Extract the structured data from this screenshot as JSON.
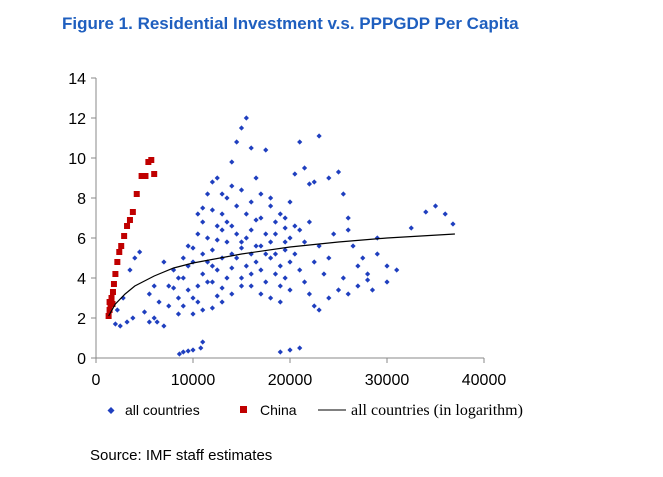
{
  "chart_data": {
    "type": "scatter",
    "title": "Figure 1. Residential Investment v.s. PPPGDP Per Capita",
    "source": "Source: IMF staff estimates",
    "xlim": [
      0,
      40000
    ],
    "ylim": [
      0,
      14
    ],
    "x_ticks": [
      "0",
      "10000",
      "20000",
      "30000",
      "40000"
    ],
    "y_ticks": [
      "0",
      "2",
      "4",
      "6",
      "8",
      "10",
      "12",
      "14"
    ],
    "grid": false,
    "legend_position": "bottom",
    "series": [
      {
        "name": "all countries",
        "color": "#1f3fbf",
        "marker": "diamond",
        "points": [
          [
            8600,
            0.2
          ],
          [
            9000,
            0.3
          ],
          [
            9500,
            0.35
          ],
          [
            10000,
            0.4
          ],
          [
            10800,
            0.5
          ],
          [
            11000,
            0.8
          ],
          [
            19000,
            0.3
          ],
          [
            20000,
            0.4
          ],
          [
            21000,
            0.5
          ],
          [
            2000,
            1.7
          ],
          [
            2500,
            1.6
          ],
          [
            3200,
            1.8
          ],
          [
            3800,
            2.0
          ],
          [
            2200,
            2.4
          ],
          [
            2800,
            3.0
          ],
          [
            3500,
            4.4
          ],
          [
            4000,
            5.0
          ],
          [
            4500,
            5.3
          ],
          [
            5000,
            2.3
          ],
          [
            5500,
            3.2
          ],
          [
            6000,
            2.0
          ],
          [
            6300,
            1.8
          ],
          [
            7000,
            1.6
          ],
          [
            7500,
            2.6
          ],
          [
            8000,
            3.5
          ],
          [
            8500,
            2.2
          ],
          [
            9000,
            4.0
          ],
          [
            9500,
            4.6
          ],
          [
            10000,
            5.5
          ],
          [
            10500,
            6.2
          ],
          [
            11000,
            7.5
          ],
          [
            11500,
            8.2
          ],
          [
            12000,
            8.8
          ],
          [
            12500,
            9.0
          ],
          [
            13000,
            7.2
          ],
          [
            13500,
            8.0
          ],
          [
            14000,
            9.8
          ],
          [
            14500,
            10.8
          ],
          [
            15000,
            11.5
          ],
          [
            15500,
            12.0
          ],
          [
            16000,
            10.5
          ],
          [
            16500,
            9.0
          ],
          [
            17000,
            8.2
          ],
          [
            17500,
            10.4
          ],
          [
            18000,
            7.6
          ],
          [
            18500,
            6.8
          ],
          [
            19000,
            7.2
          ],
          [
            19500,
            6.5
          ],
          [
            20000,
            7.8
          ],
          [
            20500,
            9.2
          ],
          [
            21000,
            10.8
          ],
          [
            21500,
            9.5
          ],
          [
            22000,
            8.7
          ],
          [
            22500,
            8.8
          ],
          [
            23000,
            11.1
          ],
          [
            24000,
            9.0
          ],
          [
            25000,
            9.3
          ],
          [
            25500,
            8.2
          ],
          [
            26000,
            6.4
          ],
          [
            27000,
            4.6
          ],
          [
            28000,
            3.9
          ],
          [
            29000,
            6.0
          ],
          [
            30000,
            3.8
          ],
          [
            31000,
            4.4
          ],
          [
            32500,
            6.5
          ],
          [
            34000,
            7.3
          ],
          [
            35000,
            7.6
          ],
          [
            36000,
            7.2
          ],
          [
            36800,
            6.7
          ],
          [
            12000,
            2.5
          ],
          [
            12500,
            3.1
          ],
          [
            13000,
            3.5
          ],
          [
            13500,
            4.0
          ],
          [
            14000,
            4.5
          ],
          [
            14500,
            5.0
          ],
          [
            15000,
            5.5
          ],
          [
            15500,
            6.0
          ],
          [
            16000,
            5.2
          ],
          [
            16500,
            4.8
          ],
          [
            17000,
            5.6
          ],
          [
            17500,
            6.2
          ],
          [
            18000,
            5.0
          ],
          [
            18500,
            4.2
          ],
          [
            19000,
            4.6
          ],
          [
            19500,
            5.4
          ],
          [
            20000,
            6.0
          ],
          [
            20500,
            5.2
          ],
          [
            21000,
            4.4
          ],
          [
            21500,
            3.8
          ],
          [
            22000,
            3.2
          ],
          [
            22500,
            2.6
          ],
          [
            23000,
            2.4
          ],
          [
            24000,
            3.0
          ],
          [
            25000,
            3.4
          ],
          [
            26000,
            3.2
          ],
          [
            27000,
            3.6
          ],
          [
            28000,
            4.2
          ],
          [
            29000,
            5.2
          ],
          [
            30000,
            4.6
          ],
          [
            10000,
            3.0
          ],
          [
            10500,
            3.6
          ],
          [
            11000,
            4.2
          ],
          [
            11500,
            4.8
          ],
          [
            12000,
            5.4
          ],
          [
            12500,
            5.9
          ],
          [
            13000,
            6.4
          ],
          [
            13500,
            5.8
          ],
          [
            14000,
            6.6
          ],
          [
            14500,
            6.2
          ],
          [
            15000,
            5.8
          ],
          [
            15500,
            4.6
          ],
          [
            16000,
            6.4
          ],
          [
            16500,
            6.9
          ],
          [
            17000,
            4.4
          ],
          [
            17500,
            3.8
          ],
          [
            18000,
            5.8
          ],
          [
            18500,
            5.2
          ],
          [
            19000,
            3.6
          ],
          [
            19500,
            4.0
          ],
          [
            20000,
            4.8
          ],
          [
            8000,
            4.4
          ],
          [
            8500,
            3.0
          ],
          [
            9000,
            2.6
          ],
          [
            9500,
            3.4
          ],
          [
            10000,
            2.2
          ],
          [
            10500,
            2.8
          ],
          [
            11000,
            2.4
          ],
          [
            11500,
            3.8
          ],
          [
            12000,
            4.6
          ],
          [
            12500,
            4.4
          ],
          [
            7000,
            4.8
          ],
          [
            7500,
            3.6
          ],
          [
            6500,
            2.8
          ],
          [
            6000,
            3.6
          ],
          [
            5500,
            1.8
          ],
          [
            13000,
            2.8
          ],
          [
            14000,
            3.2
          ],
          [
            15000,
            3.6
          ],
          [
            16000,
            4.2
          ],
          [
            17000,
            3.2
          ],
          [
            18000,
            3.0
          ],
          [
            19000,
            2.8
          ],
          [
            20000,
            3.4
          ],
          [
            21000,
            6.4
          ],
          [
            22000,
            6.8
          ],
          [
            23000,
            5.6
          ],
          [
            24000,
            5.0
          ],
          [
            15500,
            7.2
          ],
          [
            14500,
            7.6
          ],
          [
            13500,
            6.8
          ],
          [
            12500,
            6.6
          ],
          [
            11500,
            6.0
          ],
          [
            16500,
            5.6
          ],
          [
            17500,
            5.2
          ],
          [
            18500,
            6.2
          ],
          [
            19500,
            5.8
          ],
          [
            15000,
            4.0
          ],
          [
            16000,
            3.6
          ],
          [
            14000,
            5.2
          ],
          [
            13000,
            5.0
          ],
          [
            12000,
            3.8
          ],
          [
            11000,
            5.2
          ],
          [
            10000,
            4.8
          ],
          [
            9500,
            5.6
          ],
          [
            9000,
            5.0
          ],
          [
            8500,
            4.0
          ],
          [
            20500,
            6.6
          ],
          [
            21500,
            5.8
          ],
          [
            22500,
            4.8
          ],
          [
            23500,
            4.2
          ],
          [
            26500,
            5.6
          ],
          [
            27500,
            5.0
          ],
          [
            28500,
            3.4
          ],
          [
            25500,
            4.0
          ],
          [
            24500,
            6.2
          ],
          [
            26000,
            7.0
          ],
          [
            19500,
            7.0
          ],
          [
            18000,
            8.0
          ],
          [
            17000,
            7.0
          ],
          [
            16000,
            7.8
          ],
          [
            15000,
            8.4
          ],
          [
            14000,
            8.6
          ],
          [
            13000,
            8.2
          ],
          [
            12000,
            7.4
          ],
          [
            11000,
            6.8
          ],
          [
            10500,
            7.2
          ]
        ]
      },
      {
        "name": "China",
        "color": "#c00000",
        "marker": "square",
        "points": [
          [
            1300,
            2.1
          ],
          [
            1400,
            2.4
          ],
          [
            1500,
            2.7
          ],
          [
            1600,
            3.0
          ],
          [
            1750,
            3.3
          ],
          [
            1850,
            3.7
          ],
          [
            2000,
            4.2
          ],
          [
            2200,
            4.8
          ],
          [
            2400,
            5.3
          ],
          [
            2600,
            5.6
          ],
          [
            2900,
            6.1
          ],
          [
            3200,
            6.6
          ],
          [
            3500,
            6.9
          ],
          [
            3800,
            7.3
          ],
          [
            4200,
            8.2
          ],
          [
            4700,
            9.1
          ],
          [
            5100,
            9.1
          ],
          [
            5400,
            9.8
          ],
          [
            5700,
            9.9
          ],
          [
            6000,
            9.2
          ],
          [
            1400,
            2.8
          ],
          [
            1700,
            2.7
          ]
        ]
      },
      {
        "name": "all countries (in logarithm)",
        "color": "#000000",
        "type": "line",
        "points": [
          [
            1300,
            2.1
          ],
          [
            2000,
            2.7
          ],
          [
            3000,
            3.2
          ],
          [
            4000,
            3.6
          ],
          [
            6000,
            4.1
          ],
          [
            8000,
            4.5
          ],
          [
            10000,
            4.75
          ],
          [
            15000,
            5.2
          ],
          [
            20000,
            5.55
          ],
          [
            25000,
            5.8
          ],
          [
            30000,
            6.0
          ],
          [
            37000,
            6.2
          ]
        ]
      }
    ]
  }
}
